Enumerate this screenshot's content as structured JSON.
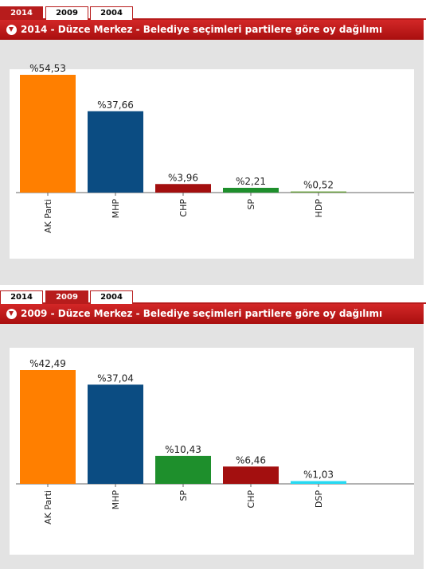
{
  "panels": [
    {
      "tabs": [
        "2014",
        "2009",
        "2004"
      ],
      "active_tab": "2014",
      "title": "2014 - Düzce Merkez - Belediye seçimleri partilere göre oy dağılımı",
      "chart_data": {
        "type": "bar",
        "categories": [
          "AK Parti",
          "MHP",
          "CHP",
          "SP",
          "HDP"
        ],
        "values": [
          54.53,
          37.66,
          3.96,
          2.21,
          0.52
        ],
        "value_labels": [
          "%54,53",
          "%37,66",
          "%3,96",
          "%2,21",
          "%0,52"
        ],
        "colors": [
          "#ff7f00",
          "#0b4c82",
          "#a30f0f",
          "#1e8f2c",
          "#67a03c"
        ],
        "ylim": [
          0,
          54.53
        ],
        "grid": false
      }
    },
    {
      "tabs": [
        "2014",
        "2009",
        "2004"
      ],
      "active_tab": "2009",
      "title": "2009 - Düzce Merkez - Belediye seçimleri partilere göre oy dağılımı",
      "chart_data": {
        "type": "bar",
        "categories": [
          "AK Parti",
          "MHP",
          "SP",
          "CHP",
          "DSP"
        ],
        "values": [
          42.49,
          37.04,
          10.43,
          6.46,
          1.03
        ],
        "value_labels": [
          "%42,49",
          "%37,04",
          "%10,43",
          "%6,46",
          "%1,03"
        ],
        "colors": [
          "#ff7f00",
          "#0b4c82",
          "#1e8f2c",
          "#a30f0f",
          "#26d9f2"
        ],
        "ylim": [
          0,
          42.49
        ],
        "grid": false
      }
    }
  ]
}
